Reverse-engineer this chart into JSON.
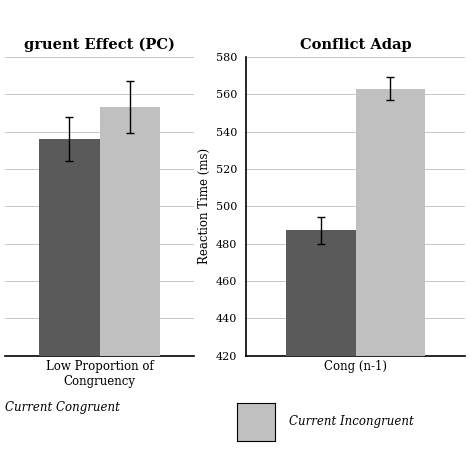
{
  "left_title": "gruent Effect (PC)",
  "right_title": "Conflict Adap",
  "ylabel": "Reaction Time (ms)",
  "left_categories": [
    "Low Proportion of\nCongruency"
  ],
  "right_categories": [
    "Cong (n-1)"
  ],
  "left_congruent_values": [
    536
  ],
  "left_incongruent_values": [
    553
  ],
  "right_congruent_values": [
    487
  ],
  "right_incongruent_values": [
    563
  ],
  "left_congruent_errors": [
    12
  ],
  "left_incongruent_errors": [
    14
  ],
  "right_congruent_errors": [
    7
  ],
  "right_incongruent_errors": [
    6
  ],
  "ylim": [
    420,
    580
  ],
  "yticks": [
    420,
    440,
    460,
    480,
    500,
    520,
    540,
    560,
    580
  ],
  "color_congruent": "#5a5a5a",
  "color_incongruent": "#c0c0c0",
  "legend_congruent": "Current Congruent",
  "legend_incongruent": "Current Incongruent",
  "bar_width": 0.35,
  "figsize": [
    4.74,
    4.74
  ],
  "dpi": 100
}
